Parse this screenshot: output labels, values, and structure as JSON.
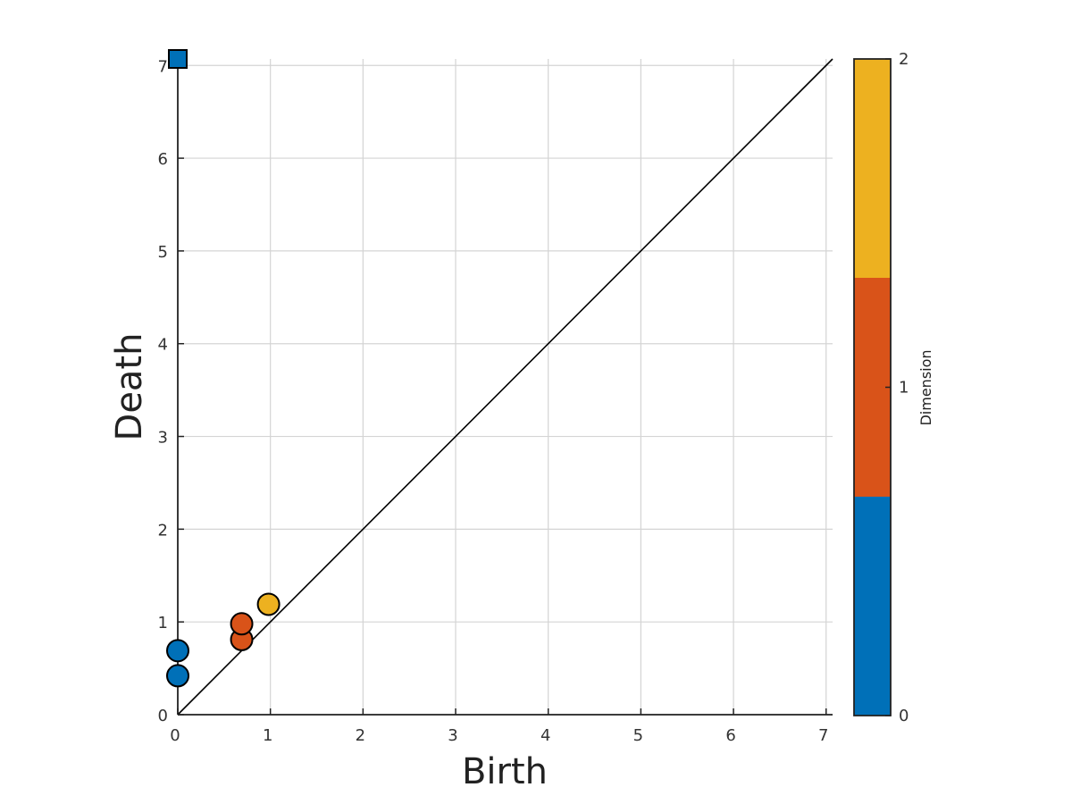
{
  "chart_data": {
    "type": "scatter",
    "title": "",
    "xlabel": "Birth",
    "ylabel": "Death",
    "xlim": [
      0,
      7.07
    ],
    "ylim": [
      0,
      7.07
    ],
    "xticks": [
      "0",
      "1",
      "2",
      "3",
      "4",
      "5",
      "6",
      "7"
    ],
    "yticks": [
      "0",
      "1",
      "2",
      "3",
      "4",
      "5",
      "6",
      "7"
    ],
    "grid": true,
    "diagonal": true,
    "points": [
      {
        "x": 0.0,
        "y": 0.42,
        "dimension": 0,
        "marker": "circle"
      },
      {
        "x": 0.0,
        "y": 0.69,
        "dimension": 0,
        "marker": "circle"
      },
      {
        "x": 0.0,
        "y": 7.07,
        "dimension": 0,
        "marker": "square"
      },
      {
        "x": 0.69,
        "y": 0.81,
        "dimension": 1,
        "marker": "circle"
      },
      {
        "x": 0.69,
        "y": 0.98,
        "dimension": 1,
        "marker": "circle"
      },
      {
        "x": 0.98,
        "y": 1.19,
        "dimension": 2,
        "marker": "circle"
      }
    ],
    "colorbar": {
      "label": "Dimension",
      "ticks": [
        "0",
        "1",
        "2"
      ],
      "colors": [
        "#0070B8",
        "#D95319",
        "#EDB120"
      ]
    }
  }
}
